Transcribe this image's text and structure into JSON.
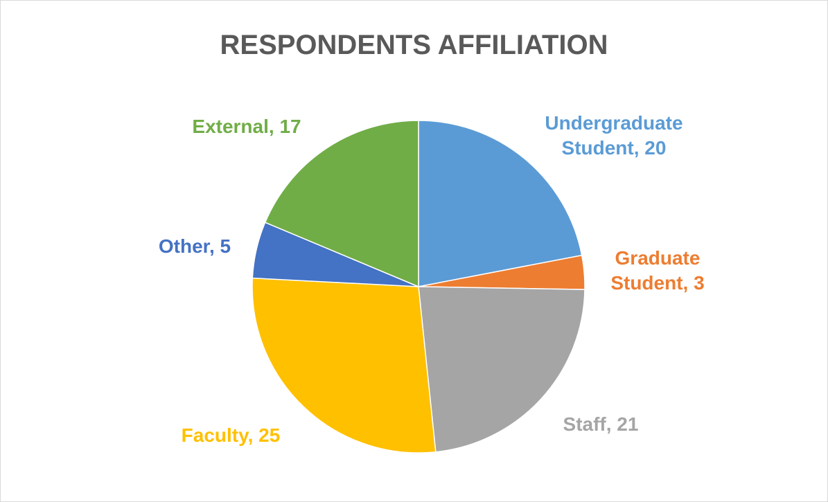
{
  "chart_data": {
    "type": "pie",
    "title": "RESPONDENTS AFFILIATION",
    "values": [
      20,
      3,
      21,
      25,
      5,
      17
    ],
    "value_labels": [
      "Undergraduate Student, 20",
      "Graduate Student, 3",
      "Staff, 21",
      "Faculty, 25",
      "Other, 5",
      "External, 17"
    ],
    "colors": [
      "#5b9bd5",
      "#ed7d31",
      "#a5a5a5",
      "#ffc000",
      "#4472c4",
      "#70ad47"
    ]
  }
}
